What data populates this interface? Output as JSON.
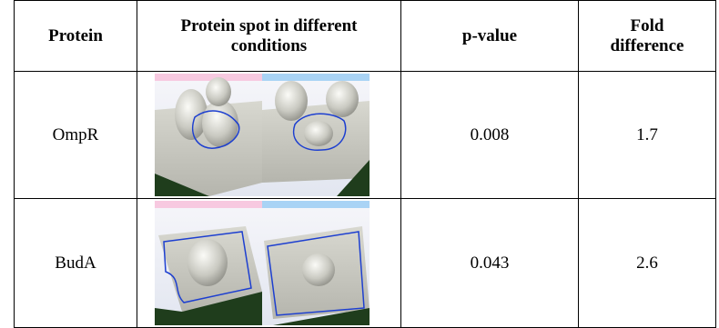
{
  "table": {
    "header": [
      "Protein",
      "Protein spot in different conditions",
      "p-value",
      "Fold difference"
    ],
    "rows": [
      [
        "OmpR",
        "0.008",
        "1.7"
      ],
      [
        "BudA",
        "0.043",
        "2.6"
      ]
    ]
  }
}
